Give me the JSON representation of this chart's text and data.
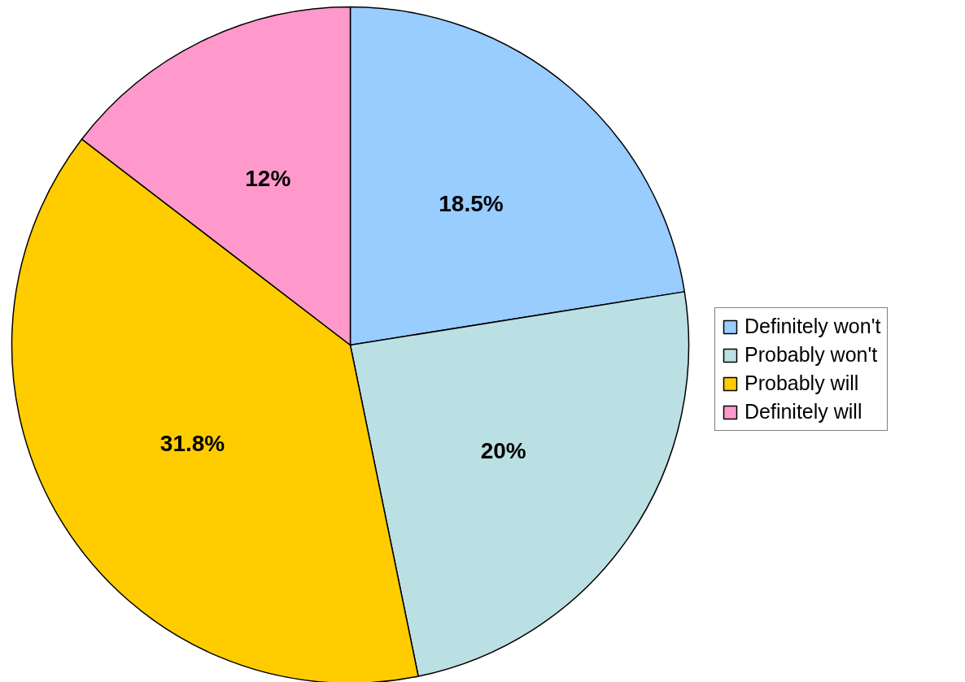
{
  "chart_data": {
    "type": "pie",
    "categories": [
      "Definitely won't",
      "Probably won't",
      "Probably will",
      "Definitely will"
    ],
    "values": [
      18.5,
      20,
      31.8,
      12
    ],
    "value_labels": [
      "18.5%",
      "20%",
      "31.8%",
      "12%"
    ],
    "colors": [
      "#99ccff",
      "#bbe0e3",
      "#ffcc00",
      "#ff99cc"
    ],
    "legend": "right"
  }
}
